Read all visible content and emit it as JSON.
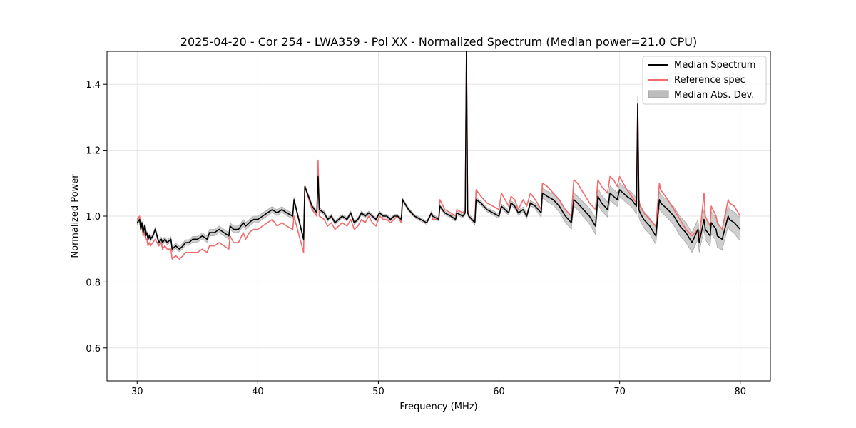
{
  "chart_data": {
    "type": "line",
    "title": "2025-04-20 - Cor 254 - LWA359 - Pol XX - Normalized Spectrum (Median power=21.0 CPU)",
    "xlabel": "Frequency (MHz)",
    "ylabel": "Normalized Power",
    "xlim": [
      27.5,
      82.5
    ],
    "ylim": [
      0.5,
      1.5
    ],
    "xticks": [
      30,
      40,
      50,
      60,
      70,
      80
    ],
    "yticks": [
      0.6,
      0.8,
      1.0,
      1.2,
      1.4
    ],
    "xtick_labels": [
      "30",
      "40",
      "50",
      "60",
      "70",
      "80"
    ],
    "ytick_labels": [
      "0.6",
      "0.8",
      "1.0",
      "1.2",
      "1.4"
    ],
    "grid": true,
    "legend_position": "top-right",
    "colors": {
      "median": "#000000",
      "reference": "#f26a6a",
      "mad_fill": "#bdbdbd",
      "mad_edge": "#999999"
    },
    "series": [
      {
        "name": "Median Spectrum",
        "x": [
          30.0,
          30.2,
          30.3,
          30.4,
          30.5,
          30.6,
          30.7,
          30.8,
          30.9,
          31.0,
          31.1,
          31.3,
          31.5,
          31.8,
          32.0,
          32.1,
          32.3,
          32.5,
          32.8,
          32.9,
          33.2,
          33.5,
          33.8,
          34.0,
          34.3,
          34.6,
          35.0,
          35.4,
          35.8,
          36.0,
          36.4,
          36.8,
          37.2,
          37.6,
          37.7,
          38.0,
          38.4,
          38.8,
          39.0,
          39.3,
          39.6,
          40.0,
          40.4,
          40.8,
          41.2,
          41.6,
          42.0,
          42.4,
          42.9,
          43.0,
          43.8,
          43.9,
          44.5,
          44.9,
          45.0,
          45.1,
          45.5,
          45.8,
          46.1,
          46.4,
          46.7,
          47.0,
          47.4,
          47.7,
          48.0,
          48.3,
          48.6,
          48.9,
          49.2,
          49.5,
          49.8,
          50.1,
          50.4,
          50.7,
          51.0,
          51.3,
          51.6,
          51.9,
          52.0,
          52.5,
          53.0,
          53.5,
          54.0,
          54.4,
          54.5,
          55.0,
          55.1,
          55.5,
          56.0,
          56.4,
          56.5,
          57.0,
          57.2,
          57.3,
          57.4,
          57.5,
          58.0,
          58.1,
          58.5,
          59.0,
          59.5,
          60.0,
          60.2,
          60.5,
          60.8,
          61.0,
          61.3,
          61.6,
          62.0,
          62.3,
          62.6,
          63.0,
          63.5,
          63.6,
          64.0,
          64.5,
          65.0,
          65.5,
          66.0,
          66.2,
          66.5,
          67.0,
          67.5,
          68.0,
          68.2,
          68.5,
          69.0,
          69.2,
          69.5,
          69.8,
          70.0,
          70.3,
          70.6,
          71.0,
          71.4,
          71.5,
          71.6,
          71.7,
          72.0,
          72.5,
          73.0,
          73.3,
          73.4,
          74.0,
          74.5,
          75.0,
          75.5,
          76.0,
          76.5,
          76.6,
          77.0,
          77.1,
          77.5,
          77.6,
          78.0,
          78.1,
          78.5,
          79.0,
          79.1,
          79.5,
          80.0
        ],
        "values": [
          0.98,
          0.99,
          0.96,
          0.98,
          0.95,
          0.97,
          0.94,
          0.95,
          0.93,
          0.94,
          0.93,
          0.94,
          0.96,
          0.92,
          0.93,
          0.92,
          0.93,
          0.92,
          0.93,
          0.9,
          0.91,
          0.9,
          0.91,
          0.92,
          0.92,
          0.93,
          0.93,
          0.94,
          0.93,
          0.95,
          0.95,
          0.96,
          0.95,
          0.94,
          0.97,
          0.96,
          0.96,
          0.98,
          0.97,
          0.98,
          0.99,
          0.99,
          1.0,
          1.01,
          1.02,
          1.01,
          1.02,
          1.01,
          1.0,
          1.05,
          0.93,
          1.09,
          1.03,
          1.01,
          1.12,
          1.02,
          1.01,
          0.99,
          1.0,
          0.98,
          0.99,
          1.0,
          0.99,
          1.01,
          0.98,
          0.99,
          1.01,
          1.0,
          1.01,
          1.0,
          0.99,
          1.01,
          1.0,
          1.0,
          0.99,
          1.0,
          1.0,
          0.99,
          1.05,
          1.02,
          1.0,
          0.99,
          0.98,
          1.01,
          1.0,
          0.99,
          1.03,
          1.01,
          1.0,
          0.99,
          1.01,
          1.0,
          1.01,
          1.5,
          1.01,
          1.0,
          0.98,
          1.05,
          1.04,
          1.02,
          1.01,
          1.0,
          1.03,
          1.02,
          1.01,
          1.04,
          1.03,
          1.01,
          1.02,
          1.0,
          1.04,
          1.03,
          1.01,
          1.07,
          1.06,
          1.05,
          1.03,
          1.0,
          0.98,
          1.05,
          1.04,
          1.02,
          1.0,
          0.97,
          1.06,
          1.04,
          1.02,
          1.07,
          1.06,
          1.05,
          1.08,
          1.07,
          1.06,
          1.05,
          1.03,
          1.34,
          1.02,
          1.01,
          0.99,
          0.97,
          0.94,
          1.05,
          1.04,
          1.02,
          1.0,
          0.97,
          0.95,
          0.92,
          0.96,
          0.92,
          0.99,
          0.96,
          0.94,
          0.98,
          0.96,
          0.94,
          0.93,
          1.0,
          0.99,
          0.98,
          0.96
        ]
      },
      {
        "name": "Reference spec",
        "x": [
          30.0,
          30.2,
          30.3,
          30.4,
          30.5,
          30.6,
          30.7,
          30.8,
          30.9,
          31.0,
          31.1,
          31.3,
          31.5,
          31.8,
          32.0,
          32.1,
          32.3,
          32.5,
          32.8,
          32.9,
          33.2,
          33.5,
          33.8,
          34.0,
          34.3,
          34.6,
          35.0,
          35.4,
          35.8,
          36.0,
          36.4,
          36.8,
          37.2,
          37.6,
          37.7,
          38.0,
          38.4,
          38.8,
          39.0,
          39.3,
          39.6,
          40.0,
          40.4,
          40.8,
          41.2,
          41.6,
          42.0,
          42.4,
          42.9,
          43.0,
          43.8,
          43.9,
          44.5,
          44.9,
          45.0,
          45.1,
          45.5,
          45.8,
          46.1,
          46.4,
          46.7,
          47.0,
          47.4,
          47.7,
          48.0,
          48.3,
          48.6,
          48.9,
          49.2,
          49.5,
          49.8,
          50.1,
          50.4,
          50.7,
          51.0,
          51.3,
          51.6,
          51.9,
          52.0,
          52.5,
          53.0,
          53.5,
          54.0,
          54.4,
          54.5,
          55.0,
          55.1,
          55.5,
          56.0,
          56.4,
          56.5,
          57.0,
          57.2,
          57.3,
          57.4,
          57.5,
          58.0,
          58.1,
          58.5,
          59.0,
          59.5,
          60.0,
          60.2,
          60.5,
          60.8,
          61.0,
          61.3,
          61.6,
          62.0,
          62.3,
          62.6,
          63.0,
          63.5,
          63.6,
          64.0,
          64.5,
          65.0,
          65.5,
          66.0,
          66.2,
          66.5,
          67.0,
          67.5,
          68.0,
          68.2,
          68.5,
          69.0,
          69.2,
          69.5,
          69.8,
          70.0,
          70.3,
          70.6,
          71.0,
          71.4,
          71.5,
          71.6,
          71.7,
          72.0,
          72.5,
          73.0,
          73.3,
          73.4,
          74.0,
          74.5,
          75.0,
          75.5,
          76.0,
          76.5,
          76.6,
          77.0,
          77.1,
          77.5,
          77.6,
          78.0,
          78.1,
          78.5,
          79.0,
          79.1,
          79.5,
          80.0
        ],
        "values": [
          0.99,
          1.0,
          0.96,
          0.97,
          0.94,
          0.95,
          0.93,
          0.93,
          0.91,
          0.92,
          0.91,
          0.92,
          0.93,
          0.91,
          0.92,
          0.9,
          0.91,
          0.9,
          0.9,
          0.87,
          0.88,
          0.87,
          0.88,
          0.89,
          0.89,
          0.89,
          0.89,
          0.9,
          0.89,
          0.91,
          0.91,
          0.92,
          0.91,
          0.9,
          0.94,
          0.92,
          0.92,
          0.95,
          0.93,
          0.95,
          0.96,
          0.96,
          0.97,
          0.98,
          0.99,
          0.97,
          0.98,
          0.97,
          0.96,
          1.0,
          0.89,
          1.09,
          1.02,
          1.0,
          1.17,
          1.0,
          0.99,
          0.97,
          0.98,
          0.96,
          0.97,
          0.98,
          0.97,
          0.99,
          0.96,
          0.97,
          0.99,
          0.98,
          1.0,
          0.98,
          0.97,
          1.0,
          0.99,
          0.99,
          0.98,
          0.99,
          1.0,
          0.98,
          1.05,
          1.02,
          1.0,
          0.99,
          0.98,
          1.01,
          0.99,
          0.99,
          1.05,
          1.02,
          1.01,
          1.0,
          1.02,
          1.01,
          1.02,
          1.5,
          1.02,
          1.0,
          0.98,
          1.08,
          1.06,
          1.04,
          1.03,
          1.02,
          1.07,
          1.05,
          1.03,
          1.06,
          1.05,
          1.02,
          1.05,
          1.03,
          1.07,
          1.05,
          1.02,
          1.1,
          1.09,
          1.07,
          1.05,
          1.02,
          1.0,
          1.11,
          1.1,
          1.07,
          1.04,
          1.02,
          1.11,
          1.09,
          1.07,
          1.12,
          1.11,
          1.09,
          1.12,
          1.1,
          1.08,
          1.06,
          1.04,
          1.34,
          1.05,
          1.03,
          1.01,
          0.99,
          0.97,
          1.1,
          1.08,
          1.05,
          1.02,
          0.99,
          0.96,
          0.94,
          0.96,
          0.93,
          1.07,
          1.0,
          0.97,
          1.03,
          1.0,
          0.98,
          0.96,
          1.05,
          1.04,
          1.03,
          1.0
        ]
      },
      {
        "name": "Median Abs. Dev.",
        "x": [
          30.0,
          33.0,
          37.0,
          40.0,
          43.0,
          44.0,
          50.0,
          55.0,
          58.0,
          63.0,
          63.6,
          66.0,
          66.2,
          68.0,
          70.0,
          72.0,
          73.4,
          75.0,
          76.6,
          77.0,
          78.0,
          79.0,
          80.0
        ],
        "halfwidth": [
          0.005,
          0.008,
          0.01,
          0.01,
          0.008,
          0.006,
          0.005,
          0.005,
          0.006,
          0.008,
          0.015,
          0.02,
          0.02,
          0.025,
          0.02,
          0.025,
          0.025,
          0.03,
          0.03,
          0.03,
          0.035,
          0.03,
          0.035
        ]
      }
    ]
  }
}
